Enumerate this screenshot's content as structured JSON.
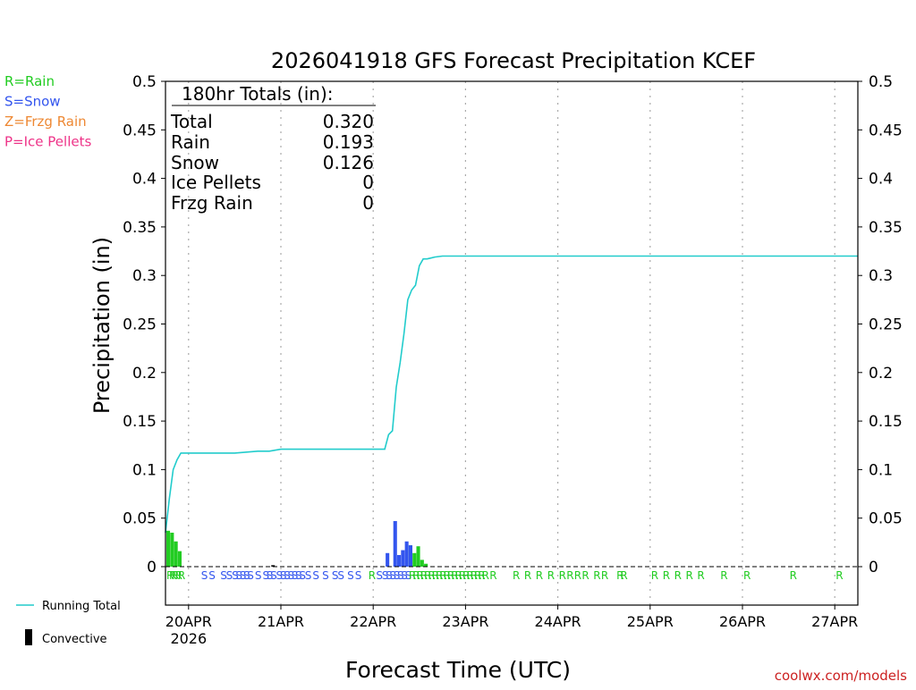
{
  "page": {
    "watermark": "coolwx.com/models",
    "footer_legend": {
      "running_total_label": "Running Total",
      "convective_label": "Convective"
    },
    "type_legend": [
      {
        "label": "R=Rain",
        "color": "#22cc22"
      },
      {
        "label": "S=Snow",
        "color": "#3355ee"
      },
      {
        "label": "Z=Frzg Rain",
        "color": "#ee8833"
      },
      {
        "label": "P=Ice Pellets",
        "color": "#ee3388"
      }
    ],
    "totals_box": {
      "header": "180hr Totals (in):",
      "rows": [
        {
          "label": "Total",
          "value": "0.320"
        },
        {
          "label": "Rain",
          "value": "0.193"
        },
        {
          "label": "Snow",
          "value": "0.126"
        },
        {
          "label": "Ice Pellets",
          "value": "0"
        },
        {
          "label": "Frzg Rain",
          "value": "0"
        }
      ]
    }
  },
  "chart_data": {
    "type": "line",
    "title": "2026041918 GFS Forecast Precipitation KCEF",
    "xlabel": "Forecast Time (UTC)",
    "ylabel": "Precipitation (in)",
    "ylim": [
      0,
      0.5
    ],
    "xlim_hours": [
      0,
      180
    ],
    "yticks": [
      "0",
      "0.05",
      "0.1",
      "0.15",
      "0.2",
      "0.25",
      "0.3",
      "0.35",
      "0.4",
      "0.45",
      "0.5"
    ],
    "xticks": [
      {
        "hour": 6,
        "label": "20APR",
        "sublabel": "2026"
      },
      {
        "hour": 30,
        "label": "21APR"
      },
      {
        "hour": 54,
        "label": "22APR"
      },
      {
        "hour": 78,
        "label": "23APR"
      },
      {
        "hour": 102,
        "label": "24APR"
      },
      {
        "hour": 126,
        "label": "25APR"
      },
      {
        "hour": 150,
        "label": "26APR"
      },
      {
        "hour": 174,
        "label": "27APR"
      }
    ],
    "colors": {
      "running_total": "#22cccc",
      "rain": "#22cc22",
      "snow": "#3355ee",
      "convective": "#000000"
    },
    "series": [
      {
        "name": "Running Total",
        "x": [
          0,
          1,
          2,
          3,
          4,
          6,
          9,
          12,
          18,
          24,
          27,
          30,
          36,
          42,
          48,
          54,
          57,
          58,
          59,
          60,
          61,
          62,
          63,
          64,
          65,
          66,
          67,
          68,
          69,
          70,
          72,
          78,
          90,
          120,
          150,
          180
        ],
        "y": [
          0.035,
          0.07,
          0.1,
          0.11,
          0.117,
          0.117,
          0.117,
          0.117,
          0.117,
          0.119,
          0.119,
          0.121,
          0.121,
          0.121,
          0.121,
          0.121,
          0.121,
          0.136,
          0.14,
          0.185,
          0.21,
          0.24,
          0.275,
          0.285,
          0.29,
          0.31,
          0.317,
          0.317,
          0.318,
          0.319,
          0.32,
          0.32,
          0.32,
          0.32,
          0.32,
          0.32
        ]
      },
      {
        "name": "Rain",
        "x": [
          0,
          1,
          2,
          3,
          63,
          64,
          65,
          66,
          67
        ],
        "y": [
          0.037,
          0.035,
          0.026,
          0.016,
          0.022,
          0.014,
          0.021,
          0.007,
          0.003
        ]
      },
      {
        "name": "Snow",
        "x": [
          57,
          59,
          60,
          61,
          62,
          63
        ],
        "y": [
          0.014,
          0.047,
          0.012,
          0.017,
          0.026,
          0.022
        ]
      }
    ],
    "ptype_markers": [
      {
        "hour": 0,
        "type": "R"
      },
      {
        "hour": 0.7,
        "type": "R"
      },
      {
        "hour": 1.4,
        "type": "R"
      },
      {
        "hour": 2.2,
        "type": "R"
      },
      {
        "hour": 3,
        "type": "R"
      },
      {
        "hour": 9,
        "type": "S"
      },
      {
        "hour": 11,
        "type": "S"
      },
      {
        "hour": 14,
        "type": "S"
      },
      {
        "hour": 15.5,
        "type": "S"
      },
      {
        "hour": 17,
        "type": "S"
      },
      {
        "hour": 18,
        "type": "S"
      },
      {
        "hour": 19,
        "type": "S"
      },
      {
        "hour": 20,
        "type": "S"
      },
      {
        "hour": 21,
        "type": "S"
      },
      {
        "hour": 23,
        "type": "S"
      },
      {
        "hour": 25,
        "type": "S"
      },
      {
        "hour": 26,
        "type": "S"
      },
      {
        "hour": 27,
        "type": "S"
      },
      {
        "hour": 28.5,
        "type": "S"
      },
      {
        "hour": 29.5,
        "type": "S"
      },
      {
        "hour": 30.5,
        "type": "S"
      },
      {
        "hour": 31.5,
        "type": "S"
      },
      {
        "hour": 32.5,
        "type": "S"
      },
      {
        "hour": 33.5,
        "type": "S"
      },
      {
        "hour": 34.5,
        "type": "S"
      },
      {
        "hour": 36,
        "type": "S"
      },
      {
        "hour": 38,
        "type": "S"
      },
      {
        "hour": 40.5,
        "type": "S"
      },
      {
        "hour": 43,
        "type": "S"
      },
      {
        "hour": 44.5,
        "type": "S"
      },
      {
        "hour": 47,
        "type": "S"
      },
      {
        "hour": 49,
        "type": "S"
      },
      {
        "hour": 52.5,
        "type": "R"
      },
      {
        "hour": 54.5,
        "type": "S"
      },
      {
        "hour": 56,
        "type": "S"
      },
      {
        "hour": 57,
        "type": "S"
      },
      {
        "hour": 58,
        "type": "S"
      },
      {
        "hour": 59,
        "type": "S"
      },
      {
        "hour": 60,
        "type": "S"
      },
      {
        "hour": 61,
        "type": "S"
      },
      {
        "hour": 62,
        "type": "S"
      },
      {
        "hour": 63,
        "type": "R"
      },
      {
        "hour": 64,
        "type": "R"
      },
      {
        "hour": 65,
        "type": "R"
      },
      {
        "hour": 66,
        "type": "R"
      },
      {
        "hour": 67,
        "type": "R"
      },
      {
        "hour": 68,
        "type": "R"
      },
      {
        "hour": 69,
        "type": "R"
      },
      {
        "hour": 70,
        "type": "R"
      },
      {
        "hour": 71,
        "type": "R"
      },
      {
        "hour": 72,
        "type": "R"
      },
      {
        "hour": 73,
        "type": "R"
      },
      {
        "hour": 74,
        "type": "R"
      },
      {
        "hour": 75,
        "type": "R"
      },
      {
        "hour": 76,
        "type": "R"
      },
      {
        "hour": 77,
        "type": "R"
      },
      {
        "hour": 78,
        "type": "R"
      },
      {
        "hour": 79,
        "type": "R"
      },
      {
        "hour": 80,
        "type": "R"
      },
      {
        "hour": 81,
        "type": "R"
      },
      {
        "hour": 82,
        "type": "R"
      },
      {
        "hour": 84,
        "type": "R"
      },
      {
        "hour": 90,
        "type": "R"
      },
      {
        "hour": 93,
        "type": "R"
      },
      {
        "hour": 96,
        "type": "R"
      },
      {
        "hour": 99,
        "type": "R"
      },
      {
        "hour": 102,
        "type": "R"
      },
      {
        "hour": 104,
        "type": "R"
      },
      {
        "hour": 106,
        "type": "R"
      },
      {
        "hour": 108,
        "type": "R"
      },
      {
        "hour": 111,
        "type": "R"
      },
      {
        "hour": 113,
        "type": "R"
      },
      {
        "hour": 117,
        "type": "R"
      },
      {
        "hour": 118,
        "type": "R"
      },
      {
        "hour": 126,
        "type": "R"
      },
      {
        "hour": 129,
        "type": "R"
      },
      {
        "hour": 132,
        "type": "R"
      },
      {
        "hour": 135,
        "type": "R"
      },
      {
        "hour": 138,
        "type": "R"
      },
      {
        "hour": 144,
        "type": "R"
      },
      {
        "hour": 150,
        "type": "R"
      },
      {
        "hour": 162,
        "type": "R"
      },
      {
        "hour": 174,
        "type": "R"
      }
    ],
    "convective_marks": [
      {
        "hour": 27.5,
        "value": 0.0015
      }
    ]
  }
}
